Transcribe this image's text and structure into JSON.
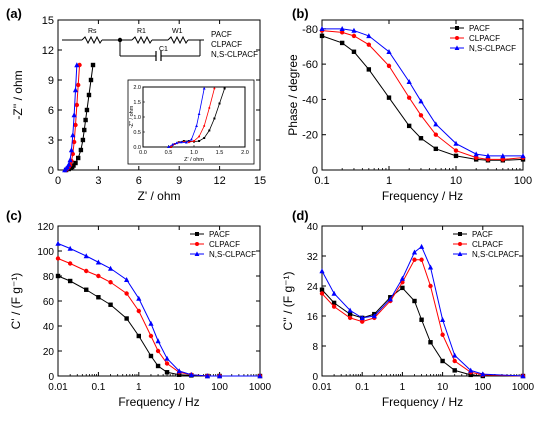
{
  "colors": {
    "PACF": "#000000",
    "CLPACF": "#ff0000",
    "N,S-CLPACF": "#0000ff"
  },
  "legend": [
    "PACF",
    "CLPACF",
    "N,S-CLPACF"
  ],
  "circuit": {
    "labels": [
      "Rs",
      "R1",
      "C1",
      "W1"
    ]
  },
  "panels": {
    "a": {
      "letter": "(a)",
      "xlabel": "Z' / ohm",
      "ylabel": "-Z'' / ohm",
      "xticks": [
        "0",
        "3",
        "6",
        "9",
        "12",
        "15"
      ],
      "yticks": [
        "0",
        "3",
        "6",
        "9",
        "12",
        "15"
      ],
      "inset": {
        "xlabel": "Z' / ohm",
        "ylabel": "-Z'' / ohm",
        "xticks": [
          "0.0",
          "0.5",
          "1.0",
          "1.5",
          "2.0"
        ],
        "yticks": [
          "0.0",
          "0.5",
          "1.0",
          "1.5",
          "2.0"
        ]
      }
    },
    "b": {
      "letter": "(b)",
      "xlabel": "Frequency / Hz",
      "ylabel": "Phase / degree",
      "xticks": [
        "0.1",
        "1",
        "10",
        "100"
      ],
      "yticks": [
        "-80",
        "-60",
        "-40",
        "-20",
        "0"
      ]
    },
    "c": {
      "letter": "(c)",
      "xlabel": "Frequency / Hz",
      "ylabel": "C' / (F g⁻¹)",
      "xticks": [
        "0.01",
        "0.1",
        "1",
        "10",
        "100",
        "1000"
      ],
      "yticks": [
        "0",
        "20",
        "40",
        "60",
        "80",
        "100",
        "120"
      ]
    },
    "d": {
      "letter": "(d)",
      "xlabel": "Frequency / Hz",
      "ylabel": "C'' / (F g⁻¹)",
      "xticks": [
        "0.01",
        "0.1",
        "1",
        "10",
        "100",
        "1000"
      ],
      "yticks": [
        "0",
        "8",
        "16",
        "24",
        "32",
        "40"
      ]
    }
  },
  "chart_data": [
    {
      "type": "scatter",
      "panel": "a",
      "xlim": [
        0,
        15
      ],
      "ylim": [
        0,
        15
      ],
      "series": [
        {
          "name": "PACF",
          "x": [
            0.6,
            0.8,
            0.95,
            1.05,
            1.15,
            1.3,
            1.5,
            1.7,
            1.85,
            1.95,
            2.05,
            2.15,
            2.3,
            2.45,
            2.6
          ],
          "y": [
            0.0,
            0.1,
            0.2,
            0.3,
            0.45,
            0.7,
            1.2,
            2.0,
            3.0,
            4.0,
            5.0,
            6.0,
            7.5,
            9.0,
            10.5
          ]
        },
        {
          "name": "CLPACF",
          "x": [
            0.6,
            0.7,
            0.8,
            0.9,
            1.0,
            1.1,
            1.2,
            1.3,
            1.4,
            1.5,
            1.6
          ],
          "y": [
            0.0,
            0.15,
            0.3,
            0.5,
            0.9,
            1.6,
            2.8,
            4.5,
            6.5,
            8.5,
            10.5
          ]
        },
        {
          "name": "N,S-CLPACF",
          "x": [
            0.5,
            0.6,
            0.7,
            0.8,
            0.9,
            1.0,
            1.1,
            1.2,
            1.3,
            1.4
          ],
          "y": [
            0.0,
            0.15,
            0.3,
            0.55,
            1.0,
            2.0,
            3.5,
            5.5,
            8.0,
            10.5
          ]
        }
      ]
    },
    {
      "type": "line",
      "panel": "a-inset",
      "xlim": [
        0,
        2
      ],
      "ylim": [
        0,
        2
      ],
      "series": [
        {
          "name": "PACF",
          "x": [
            0.55,
            0.62,
            0.7,
            0.8,
            0.9,
            1.0,
            1.1,
            1.2,
            1.3,
            1.4,
            1.5,
            1.6
          ],
          "y": [
            0.0,
            0.1,
            0.16,
            0.2,
            0.2,
            0.18,
            0.2,
            0.3,
            0.55,
            0.95,
            1.45,
            1.95
          ]
        },
        {
          "name": "CLPACF",
          "x": [
            0.55,
            0.62,
            0.7,
            0.8,
            0.9,
            1.0,
            1.1,
            1.2,
            1.3,
            1.4
          ],
          "y": [
            0.0,
            0.1,
            0.15,
            0.17,
            0.16,
            0.2,
            0.35,
            0.7,
            1.3,
            1.95
          ]
        },
        {
          "name": "N,S-CLPACF",
          "x": [
            0.5,
            0.58,
            0.66,
            0.75,
            0.85,
            0.95,
            1.05,
            1.1,
            1.2
          ],
          "y": [
            0.0,
            0.08,
            0.13,
            0.16,
            0.15,
            0.25,
            0.7,
            1.1,
            1.95
          ]
        }
      ]
    },
    {
      "type": "line",
      "panel": "b",
      "xscale": "log",
      "xlim": [
        0.1,
        100
      ],
      "ylim": [
        0,
        -85
      ],
      "x": [
        0.1,
        0.2,
        0.3,
        0.5,
        1,
        2,
        3,
        5,
        10,
        20,
        30,
        50,
        100
      ],
      "series": [
        {
          "name": "PACF",
          "values": [
            -76,
            -72,
            -67,
            -57,
            -41,
            -25,
            -18,
            -12,
            -8,
            -6,
            -5.5,
            -5.5,
            -6
          ]
        },
        {
          "name": "CLPACF",
          "values": [
            -79,
            -78,
            -76,
            -71,
            -59,
            -41,
            -31,
            -20,
            -11,
            -7,
            -6,
            -6,
            -7
          ]
        },
        {
          "name": "N,S-CLPACF",
          "values": [
            -80,
            -80,
            -79,
            -76,
            -67,
            -50,
            -39,
            -26,
            -15,
            -9,
            -8,
            -8,
            -8
          ]
        }
      ]
    },
    {
      "type": "line",
      "panel": "c",
      "xscale": "log",
      "xlim": [
        0.01,
        1000
      ],
      "ylim": [
        0,
        120
      ],
      "x": [
        0.01,
        0.02,
        0.05,
        0.1,
        0.2,
        0.5,
        1,
        2,
        3,
        5,
        10,
        20,
        50,
        100,
        1000
      ],
      "series": [
        {
          "name": "PACF",
          "values": [
            80,
            76,
            69,
            63,
            57,
            46,
            32,
            16,
            8,
            3,
            1,
            0.5,
            0,
            0,
            0
          ]
        },
        {
          "name": "CLPACF",
          "values": [
            94,
            90,
            84,
            80,
            75,
            66,
            52,
            32,
            20,
            10,
            3,
            1,
            0,
            0,
            0
          ]
        },
        {
          "name": "N,S-CLPACF",
          "values": [
            106,
            102,
            96,
            91,
            86,
            77,
            62,
            42,
            28,
            14,
            4,
            1,
            0,
            0,
            0
          ]
        }
      ]
    },
    {
      "type": "line",
      "panel": "d",
      "xscale": "log",
      "xlim": [
        0.01,
        1000
      ],
      "ylim": [
        0,
        40
      ],
      "x": [
        0.01,
        0.02,
        0.05,
        0.1,
        0.2,
        0.5,
        1,
        2,
        3,
        5,
        10,
        20,
        50,
        100,
        1000
      ],
      "series": [
        {
          "name": "PACF",
          "values": [
            23,
            19.5,
            16.5,
            15.5,
            16.5,
            21,
            23.5,
            20,
            15,
            9,
            4,
            1.5,
            0.3,
            0,
            0
          ]
        },
        {
          "name": "CLPACF",
          "values": [
            22,
            18.5,
            15.5,
            14.5,
            15.5,
            20,
            25,
            31,
            31,
            24,
            11,
            4,
            1,
            0.3,
            0
          ]
        },
        {
          "name": "N,S-CLPACF",
          "values": [
            28,
            22,
            17.5,
            15.5,
            16,
            20.5,
            26,
            33,
            34.5,
            29,
            15,
            5.5,
            1.5,
            0.5,
            0
          ]
        }
      ]
    }
  ]
}
